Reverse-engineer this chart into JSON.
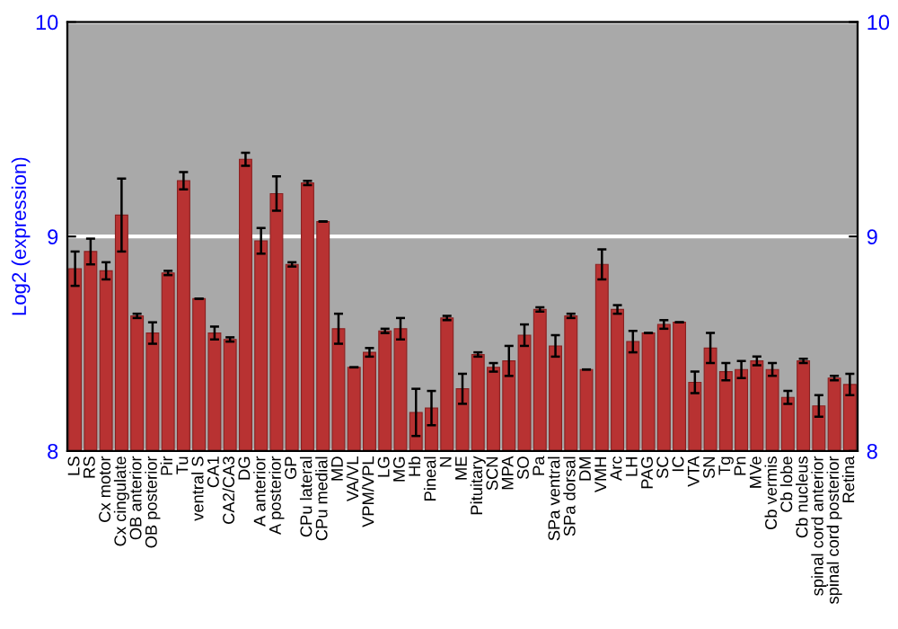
{
  "chart_data": {
    "type": "bar",
    "ylabel": "Log2 (expression)",
    "categories": [
      "LS",
      "RS",
      "Cx motor",
      "Cx cingulate",
      "OB anterior",
      "OB posterior",
      "Pir",
      "Tu",
      "ventral S",
      "CA1",
      "CA2/CA3",
      "DG",
      "A anterior",
      "A posterior",
      "GP",
      "CPu lateral",
      "CPu medial",
      "MD",
      "VA/VL",
      "VPM/VPL",
      "LG",
      "MG",
      "Hb",
      "Pineal",
      "N",
      "ME",
      "Pituitary",
      "SCN",
      "MPA",
      "SO",
      "Pa",
      "SPa ventral",
      "SPa dorsal",
      "DM",
      "VMH",
      "Arc",
      "LH",
      "PAG",
      "SC",
      "IC",
      "VTA",
      "SN",
      "Tg",
      "Pn",
      "MVe",
      "Cb vermis",
      "Cb lobe",
      "Cb nucleus",
      "spinal cord anterior",
      "spinal cord posterior",
      "Retina"
    ],
    "series": [
      {
        "color": "#b83232",
        "values": [
          8.85,
          8.93,
          8.84,
          9.1,
          8.63,
          8.55,
          8.83,
          9.26,
          8.71,
          8.55,
          8.52,
          9.36,
          8.98,
          9.2,
          8.87,
          9.25,
          9.07,
          8.57,
          8.39,
          8.46,
          8.56,
          8.57,
          8.18,
          8.2,
          8.62,
          8.29,
          8.45,
          8.39,
          8.42,
          8.54,
          8.66,
          8.49,
          8.63,
          8.38,
          8.87,
          8.66,
          8.51,
          8.55,
          8.59,
          8.6,
          8.32,
          8.48,
          8.37,
          8.38,
          8.42,
          8.38,
          8.25,
          8.42,
          8.21,
          8.34,
          8.31
        ],
        "errors": [
          0.08,
          0.06,
          0.04,
          0.17,
          0.01,
          0.05,
          0.01,
          0.04,
          null,
          0.03,
          0.01,
          0.03,
          0.06,
          0.08,
          0.01,
          0.01,
          null,
          0.07,
          null,
          0.02,
          0.01,
          0.05,
          0.11,
          0.08,
          0.01,
          0.07,
          0.01,
          0.02,
          0.07,
          0.05,
          0.01,
          0.05,
          0.01,
          null,
          0.07,
          0.02,
          0.05,
          null,
          0.02,
          null,
          0.05,
          0.07,
          0.04,
          0.04,
          0.02,
          0.03,
          0.03,
          0.01,
          0.05,
          0.01,
          0.05
        ]
      }
    ],
    "ylim": [
      8,
      10
    ],
    "yticks": [
      8,
      9,
      10
    ],
    "y2lim": [
      8,
      10
    ],
    "y2ticks": [
      8,
      9,
      10
    ],
    "grid": "y"
  }
}
